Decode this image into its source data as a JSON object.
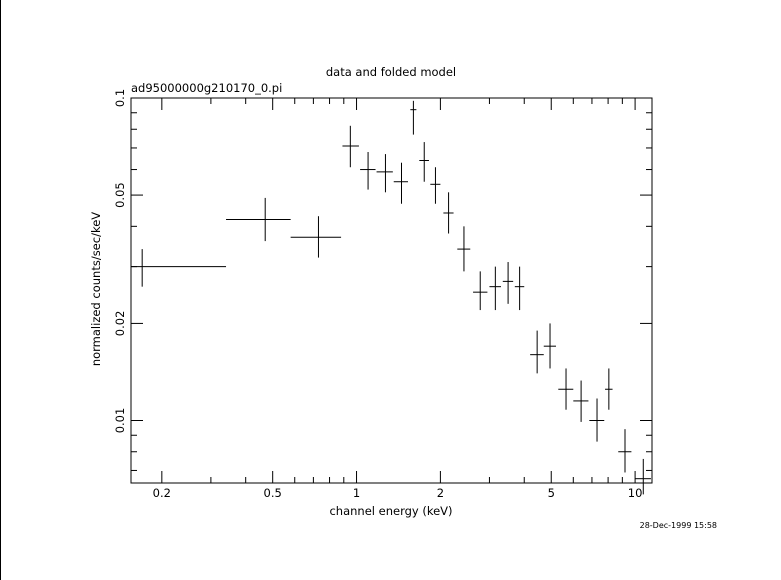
{
  "chart_data": {
    "type": "scatter",
    "title": "data and folded model",
    "subtitle": "ad95000000g210170_0.pi",
    "xlabel": "channel energy (keV)",
    "ylabel": "normalized counts/sec/keV",
    "x_scale": "log",
    "y_scale": "log",
    "xlim": [
      0.155,
      11.5
    ],
    "ylim": [
      0.0064,
      0.1
    ],
    "x_ticks": [
      0.2,
      0.5,
      1,
      2,
      5,
      10
    ],
    "x_tick_labels": [
      "0.2",
      "0.5",
      "1",
      "2",
      "5",
      "10"
    ],
    "y_ticks": [
      0.01,
      0.02,
      0.05,
      0.1
    ],
    "y_tick_labels": [
      "0.01",
      "0.02",
      "0.05",
      "0.1"
    ],
    "grid": false,
    "points": [
      {
        "x": 0.17,
        "y": 0.03,
        "xerr": [
          0.155,
          0.34
        ],
        "yerr": [
          0.026,
          0.034
        ]
      },
      {
        "x": 0.47,
        "y": 0.042,
        "xerr": [
          0.34,
          0.58
        ],
        "yerr": [
          0.036,
          0.049
        ]
      },
      {
        "x": 0.73,
        "y": 0.037,
        "xerr": [
          0.58,
          0.88
        ],
        "yerr": [
          0.032,
          0.043
        ]
      },
      {
        "x": 0.95,
        "y": 0.071,
        "xerr": [
          0.89,
          1.02
        ],
        "yerr": [
          0.061,
          0.082
        ]
      },
      {
        "x": 1.1,
        "y": 0.06,
        "xerr": [
          1.03,
          1.17
        ],
        "yerr": [
          0.052,
          0.068
        ]
      },
      {
        "x": 1.27,
        "y": 0.059,
        "xerr": [
          1.18,
          1.35
        ],
        "yerr": [
          0.051,
          0.067
        ]
      },
      {
        "x": 1.45,
        "y": 0.055,
        "xerr": [
          1.36,
          1.53
        ],
        "yerr": [
          0.047,
          0.063
        ]
      },
      {
        "x": 1.6,
        "y": 0.092,
        "xerr": [
          1.56,
          1.64
        ],
        "yerr": [
          0.077,
          0.098
        ]
      },
      {
        "x": 1.75,
        "y": 0.064,
        "xerr": [
          1.68,
          1.82
        ],
        "yerr": [
          0.055,
          0.073
        ]
      },
      {
        "x": 1.92,
        "y": 0.054,
        "xerr": [
          1.84,
          2.0
        ],
        "yerr": [
          0.047,
          0.061
        ]
      },
      {
        "x": 2.14,
        "y": 0.044,
        "xerr": [
          2.05,
          2.23
        ],
        "yerr": [
          0.038,
          0.051
        ]
      },
      {
        "x": 2.43,
        "y": 0.034,
        "xerr": [
          2.3,
          2.56
        ],
        "yerr": [
          0.029,
          0.04
        ]
      },
      {
        "x": 2.78,
        "y": 0.025,
        "xerr": [
          2.62,
          2.95
        ],
        "yerr": [
          0.022,
          0.029
        ]
      },
      {
        "x": 3.15,
        "y": 0.026,
        "xerr": [
          3.0,
          3.3
        ],
        "yerr": [
          0.022,
          0.03
        ]
      },
      {
        "x": 3.5,
        "y": 0.027,
        "xerr": [
          3.35,
          3.65
        ],
        "yerr": [
          0.023,
          0.031
        ]
      },
      {
        "x": 3.85,
        "y": 0.026,
        "xerr": [
          3.7,
          4.0
        ],
        "yerr": [
          0.022,
          0.03
        ]
      },
      {
        "x": 4.45,
        "y": 0.016,
        "xerr": [
          4.2,
          4.7
        ],
        "yerr": [
          0.014,
          0.019
        ]
      },
      {
        "x": 4.95,
        "y": 0.017,
        "xerr": [
          4.7,
          5.2
        ],
        "yerr": [
          0.0145,
          0.02
        ]
      },
      {
        "x": 5.65,
        "y": 0.0125,
        "xerr": [
          5.3,
          6.0
        ],
        "yerr": [
          0.0108,
          0.0145
        ]
      },
      {
        "x": 6.4,
        "y": 0.0115,
        "xerr": [
          6.0,
          6.8
        ],
        "yerr": [
          0.0099,
          0.0133
        ]
      },
      {
        "x": 7.3,
        "y": 0.01,
        "xerr": [
          6.85,
          7.75
        ],
        "yerr": [
          0.0086,
          0.0117
        ]
      },
      {
        "x": 8.05,
        "y": 0.0125,
        "xerr": [
          7.8,
          8.3
        ],
        "yerr": [
          0.0108,
          0.0145
        ]
      },
      {
        "x": 9.2,
        "y": 0.008,
        "xerr": [
          8.7,
          9.7
        ],
        "yerr": [
          0.0069,
          0.0094
        ]
      },
      {
        "x": 10.7,
        "y": 0.0066,
        "xerr": [
          10.0,
          11.4
        ],
        "yerr": [
          0.0059,
          0.0076
        ]
      }
    ]
  },
  "timestamp": "28-Dec-1999 15:58"
}
